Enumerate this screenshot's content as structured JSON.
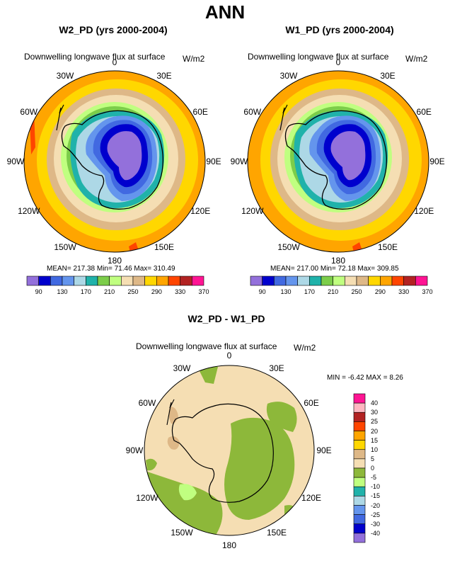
{
  "title": "ANN",
  "panels": [
    {
      "title": "W2_PD (yrs 2000-2004)",
      "variable": "Downwelling longwave flux at surface",
      "units": "W/m2",
      "stats": "MEAN= 217.38  Min=  71.46  Max= 310.49"
    },
    {
      "title": "W1_PD (yrs 2000-2004)",
      "variable": "Downwelling longwave flux at surface",
      "units": "W/m2",
      "stats": "MEAN= 217.00  Min=  72.18  Max= 309.85"
    }
  ],
  "diff": {
    "title": "W2_PD - W1_PD",
    "variable": "Downwelling longwave flux at surface",
    "units": "W/m2",
    "minmax": "MIN =  -6.42  MAX =   8.26"
  },
  "lon_labels": [
    "0",
    "30E",
    "60E",
    "90E",
    "120E",
    "150E",
    "180",
    "150W",
    "120W",
    "90W",
    "60W",
    "30W"
  ],
  "colorbar_top": {
    "labels": [
      "90",
      "130",
      "170",
      "210",
      "250",
      "290",
      "330",
      "370"
    ],
    "colors": [
      "#9370DB",
      "#0000CD",
      "#4169E1",
      "#6495ED",
      "#ADD8E6",
      "#20B2AA",
      "#7CCD4A",
      "#C0FF80",
      "#F5DEB3",
      "#DEB887",
      "#FFD700",
      "#FFA500",
      "#FF4500",
      "#B22222",
      "#FF1493"
    ]
  },
  "colorbar_diff": {
    "labels": [
      "40",
      "30",
      "25",
      "20",
      "15",
      "10",
      "5",
      "0",
      "-5",
      "-10",
      "-15",
      "-20",
      "-25",
      "-30",
      "-40"
    ],
    "colors": [
      "#FF1493",
      "#FFB6C1",
      "#B22222",
      "#FF4500",
      "#FFA500",
      "#FFD700",
      "#DEB887",
      "#F5DEB3",
      "#8DB83A",
      "#C0FF80",
      "#20B2AA",
      "#ADD8E6",
      "#6495ED",
      "#4169E1",
      "#0000CD",
      "#9370DB"
    ]
  }
}
